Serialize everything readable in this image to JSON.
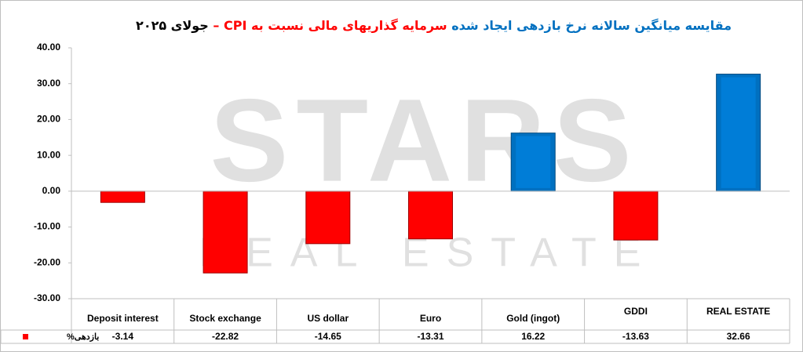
{
  "chart_data": {
    "type": "bar",
    "title_parts": [
      {
        "text": "مقایسه میانگین سالانه نرخ بازدهی ایجاد شده",
        "color": "#0070c0"
      },
      {
        "text": "سرمایه گذاریهای مالی نسبت به CPI –",
        "color": "#ff0000"
      },
      {
        "text": "جولای ۲۰۲۵",
        "color": "#000000"
      }
    ],
    "watermark": [
      "STARS",
      "REAL ESTATE"
    ],
    "categories": [
      "Deposit interest",
      "Stock exchange",
      "US dollar",
      "Euro",
      "Gold (ingot)",
      "GDDI",
      "REAL ESTATE"
    ],
    "series": [
      {
        "name": "بازدهی%",
        "color": "#ff0000",
        "values": [
          -3.14,
          -22.82,
          -14.65,
          -13.31,
          16.22,
          -13.63,
          32.66
        ]
      }
    ],
    "positive_color": "#0070c0",
    "ylim": [
      -30,
      40
    ],
    "yticks": [
      {
        "value": -30,
        "label": "-30.00"
      },
      {
        "value": -20,
        "label": "-20.00"
      },
      {
        "value": -10,
        "label": "-10.00"
      },
      {
        "value": 0,
        "label": "0.00"
      },
      {
        "value": 10,
        "label": "10.00"
      },
      {
        "value": 20,
        "label": "20.00"
      },
      {
        "value": 30,
        "label": "30.00"
      },
      {
        "value": 40,
        "label": "40.00"
      }
    ],
    "grid": false
  }
}
